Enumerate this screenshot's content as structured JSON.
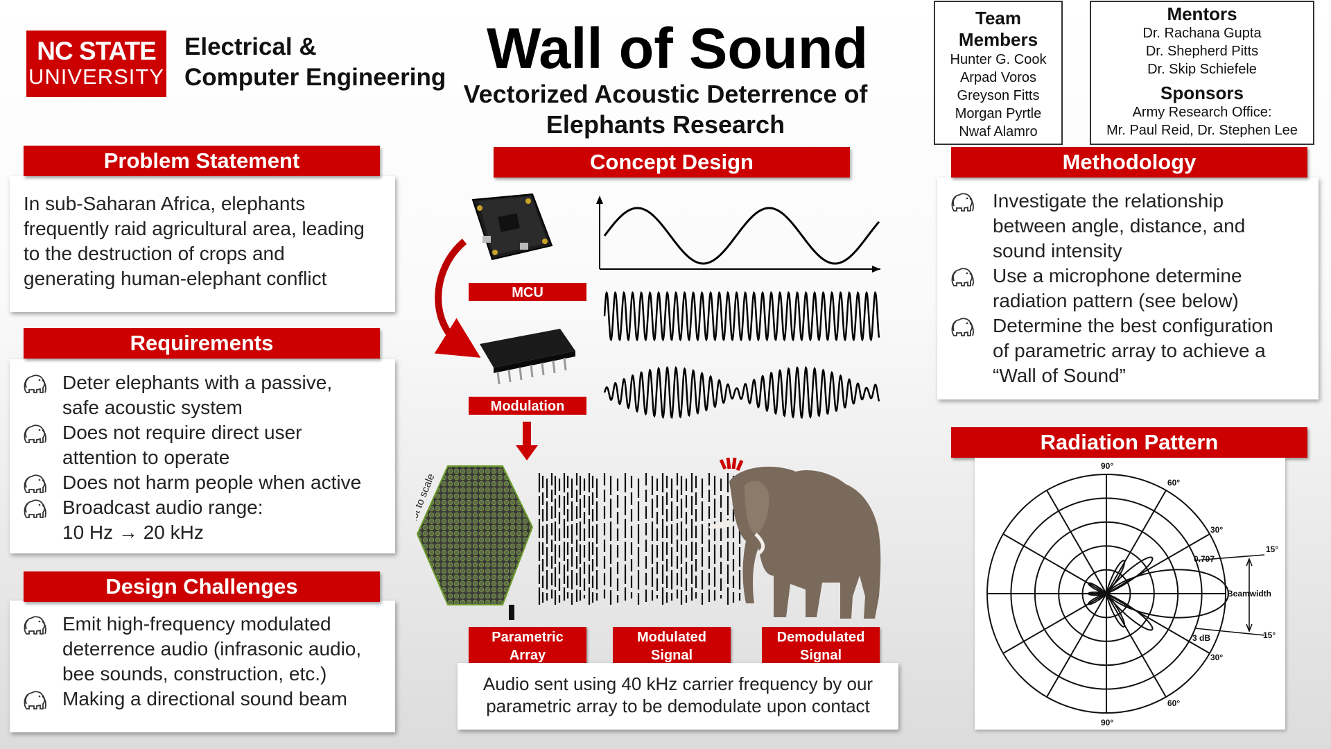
{
  "logo": {
    "line1": "NC STATE",
    "line2": "UNIVERSITY",
    "dept_line1": "Electrical &",
    "dept_line2": "Computer Engineering"
  },
  "title": {
    "main": "Wall of Sound",
    "sub_line1": "Vectorized Acoustic Deterrence of",
    "sub_line2": "Elephants Research"
  },
  "team": {
    "heading_line1": "Team",
    "heading_line2": "Members",
    "members": [
      "Hunter G. Cook",
      "Arpad Voros",
      "Greyson Fitts",
      "Morgan Pyrtle",
      "Nwaf Alamro"
    ]
  },
  "mentors": {
    "heading": "Mentors",
    "names": [
      "Dr. Rachana Gupta",
      "Dr. Shepherd Pitts",
      "Dr. Skip Schiefele"
    ],
    "sponsors_heading": "Sponsors",
    "sponsors": [
      "Army Research Office:",
      "Mr. Paul Reid, Dr. Stephen Lee"
    ]
  },
  "problem": {
    "heading": "Problem Statement",
    "lines": [
      "In sub-Saharan Africa, elephants",
      "frequently raid agricultural area, leading",
      "to the destruction of crops and",
      "generating human-elephant conflict"
    ]
  },
  "requirements": {
    "heading": "Requirements",
    "items": [
      [
        "Deter elephants with a passive,",
        "safe acoustic system"
      ],
      [
        "Does not require direct user",
        "attention to operate"
      ],
      [
        "Does not harm people when active"
      ],
      [
        "Broadcast audio range:",
        "10 Hz → 20 kHz"
      ]
    ]
  },
  "challenges": {
    "heading": "Design Challenges",
    "items": [
      [
        "Emit high-frequency modulated",
        "deterrence audio (infrasonic audio,",
        "bee sounds, construction, etc.)"
      ],
      [
        "Making a directional sound beam"
      ]
    ]
  },
  "concept": {
    "heading": "Concept Design",
    "mcu_label": "MCU",
    "modulation_label": "Modulation",
    "parametric_label": [
      "Parametric",
      "Array"
    ],
    "modulated_label": [
      "Modulated",
      "Signal"
    ],
    "demodulated_label": [
      "Demodulated",
      "Signal"
    ],
    "not_to_scale": "*not to scale",
    "caption_line1": "Audio sent using 40 kHz carrier frequency by our",
    "caption_line2": "parametric array to be demodulate upon contact"
  },
  "methodology": {
    "heading": "Methodology",
    "items": [
      [
        "Investigate the relationship",
        "between angle, distance, and",
        "sound intensity"
      ],
      [
        "Use a microphone determine",
        "radiation pattern (see below)"
      ],
      [
        "Determine the best configuration",
        "of parametric array to achieve a",
        "“Wall of Sound”"
      ]
    ]
  },
  "radiation": {
    "heading": "Radiation Pattern",
    "angles": {
      "top": "90°",
      "bottom": "90°",
      "upper60": "60°",
      "lower60": "60°",
      "upper30": "30°",
      "lower30": "30°",
      "upper15": "15°",
      "lower15": "15°"
    },
    "level_label": "0.707",
    "beamwidth_label": "Beamwidth",
    "db_label": "3 dB"
  },
  "colors": {
    "accent": "#cc0000",
    "logo_red": "#cc0000"
  },
  "icons": [
    "elephant-icon"
  ]
}
